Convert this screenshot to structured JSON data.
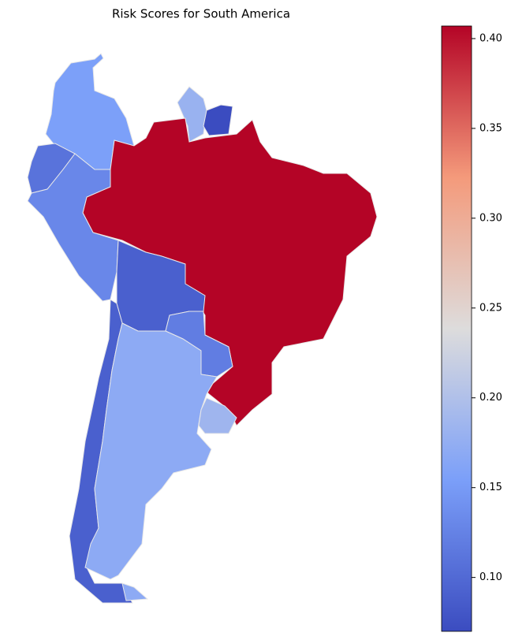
{
  "chart_data": {
    "type": "choropleth",
    "title": "Risk Scores for South America",
    "values": [
      0.155,
      0.18,
      0.07,
      0.407,
      0.11,
      0.13,
      0.09,
      0.12,
      0.09,
      0.17,
      0.185
    ],
    "cmap": "coolwarm",
    "clim": [
      0.07,
      0.407
    ],
    "cticks": [
      {
        "value": 0.1,
        "label": "0.10"
      },
      0.15,
      {
        "value": 0.2,
        "label": "0.20"
      },
      0.25,
      {
        "value": 0.3,
        "label": "0.30"
      },
      0.35,
      {
        "value": 0.4,
        "label": "0.40"
      }
    ]
  }
}
